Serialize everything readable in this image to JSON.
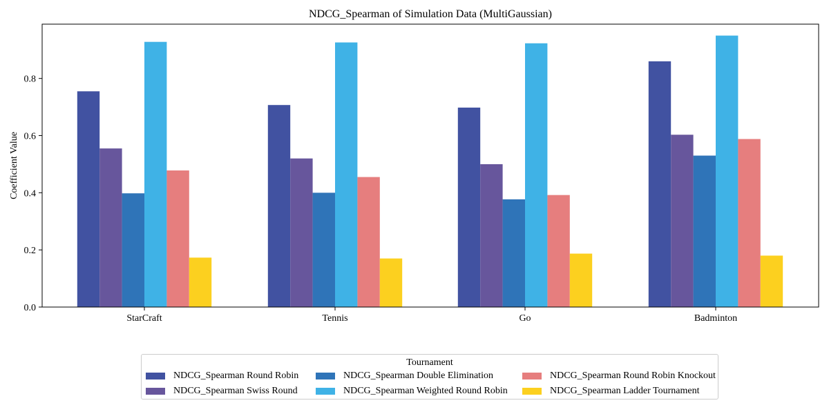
{
  "chart_data": {
    "type": "bar",
    "title": "NDCG_Spearman of Simulation Data (MultiGaussian)",
    "xlabel": "",
    "ylabel": "Coefficient Value",
    "ylim": [
      0,
      0.99
    ],
    "yticks": [
      "0.0",
      "0.2",
      "0.4",
      "0.6",
      "0.8"
    ],
    "grid": false,
    "legend_placement": "bottom-center",
    "legend_title": "Tournament",
    "categories": [
      "StarCraft",
      "Tennis",
      "Go",
      "Badminton"
    ],
    "series": [
      {
        "name": "NDCG_Spearman Round Robin",
        "color": "#4152a1",
        "values": [
          0.755,
          0.707,
          0.698,
          0.86
        ]
      },
      {
        "name": "NDCG_Spearman Swiss Round",
        "color": "#67569c",
        "values": [
          0.555,
          0.52,
          0.5,
          0.603
        ]
      },
      {
        "name": "NDCG_Spearman Double Elimination",
        "color": "#2f74b8",
        "values": [
          0.398,
          0.4,
          0.377,
          0.53
        ]
      },
      {
        "name": "NDCG_Spearman Weighted Round Robin",
        "color": "#3fb2e6",
        "values": [
          0.928,
          0.926,
          0.923,
          0.95
        ]
      },
      {
        "name": "NDCG_Spearman Round Robin Knockout",
        "color": "#e67e7e",
        "values": [
          0.478,
          0.455,
          0.392,
          0.588
        ]
      },
      {
        "name": "NDCG_Spearman Ladder Tournament",
        "color": "#fcd01f",
        "values": [
          0.173,
          0.17,
          0.187,
          0.18
        ]
      }
    ]
  }
}
